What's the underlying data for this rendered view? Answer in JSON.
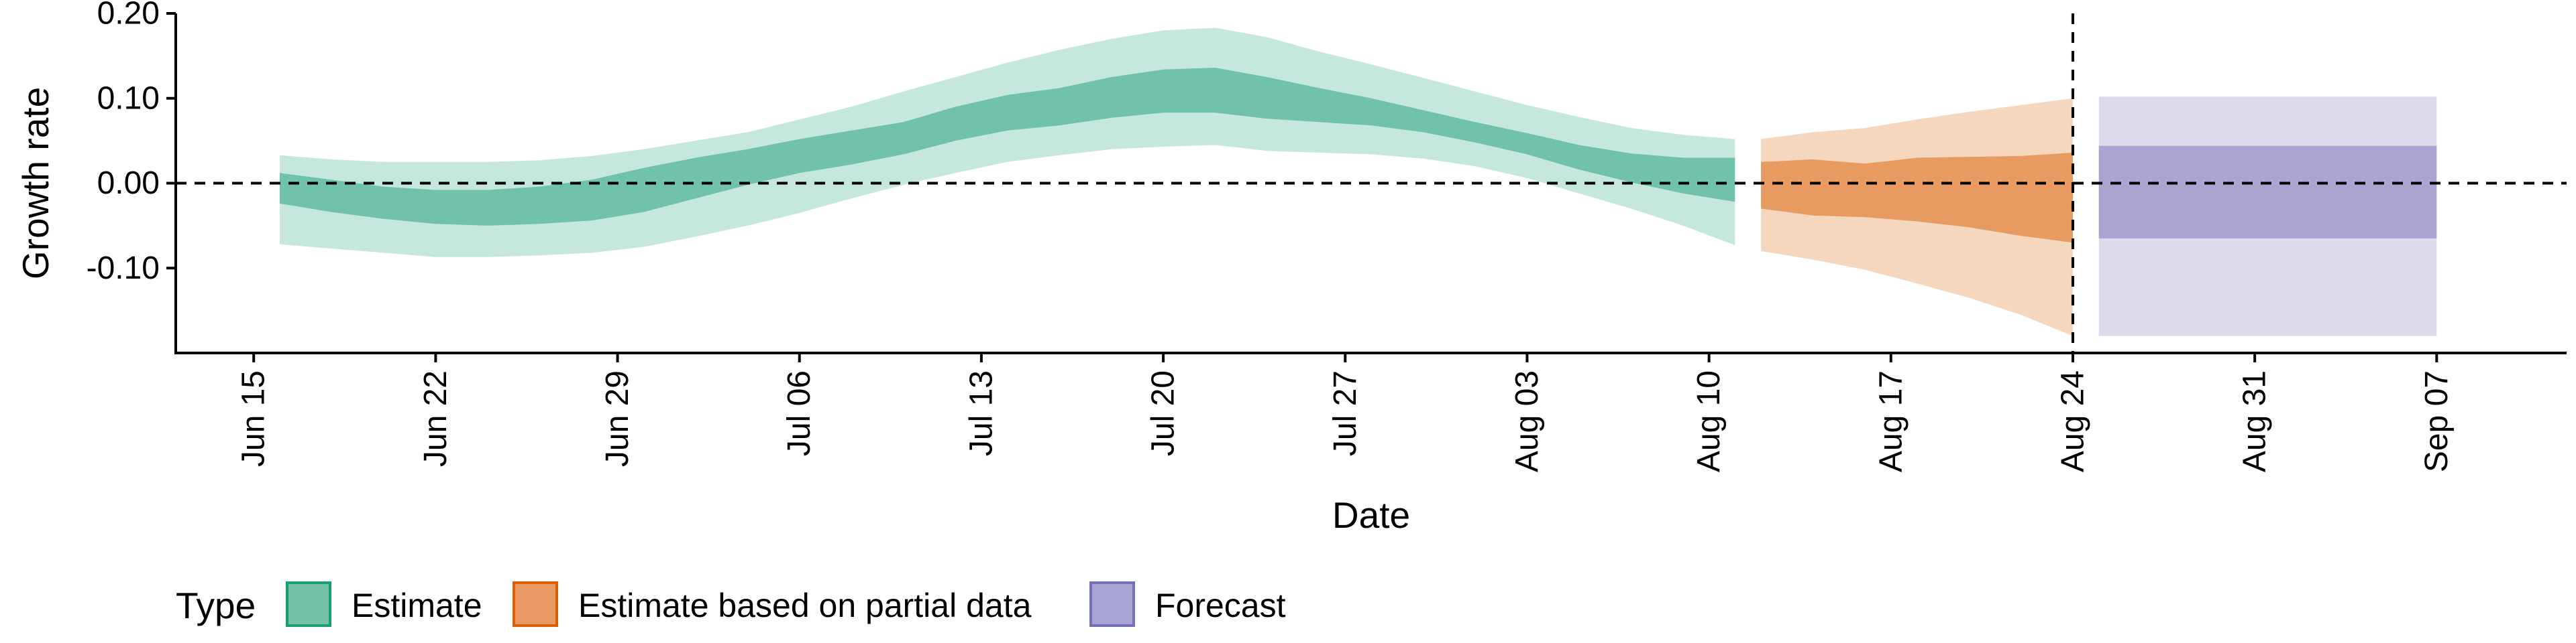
{
  "chart_data": {
    "type": "area",
    "xlabel": "Date",
    "ylabel": "Growth rate",
    "ylim": [
      -0.2,
      0.2
    ],
    "yticks": [
      -0.1,
      0.0,
      0.1,
      0.2
    ],
    "ytick_labels": [
      "-0.10",
      "0.00",
      "0.10",
      "0.20"
    ],
    "xlim": [
      "2021-06-12",
      "2021-09-12"
    ],
    "xticks": [
      "2021-06-15",
      "2021-06-22",
      "2021-06-29",
      "2021-07-06",
      "2021-07-13",
      "2021-07-20",
      "2021-07-27",
      "2021-08-03",
      "2021-08-10",
      "2021-08-17",
      "2021-08-24",
      "2021-08-31",
      "2021-09-07"
    ],
    "xtick_labels": [
      "Jun 15",
      "Jun 22",
      "Jun 29",
      "Jul 06",
      "Jul 13",
      "Jul 20",
      "Jul 27",
      "Aug 03",
      "Aug 10",
      "Aug 17",
      "Aug 24",
      "Aug 31",
      "Sep 07"
    ],
    "hline": 0.0,
    "vline": "2021-08-24",
    "grid": false,
    "legend": {
      "title": "Type",
      "position": "bottom",
      "entries": [
        {
          "label": "Estimate",
          "fill": "#73c2a5",
          "border": "#1b9e77"
        },
        {
          "label": "Estimate based on partial data",
          "fill": "#e89a62",
          "border": "#d95f02"
        },
        {
          "label": "Forecast",
          "fill": "#a7a3d2",
          "border": "#7570b3"
        }
      ]
    },
    "series": [
      {
        "name": "Estimate",
        "color": "#1b9e77",
        "x": [
          "2021-06-16",
          "2021-06-18",
          "2021-06-20",
          "2021-06-22",
          "2021-06-24",
          "2021-06-26",
          "2021-06-28",
          "2021-06-30",
          "2021-07-02",
          "2021-07-04",
          "2021-07-06",
          "2021-07-08",
          "2021-07-10",
          "2021-07-12",
          "2021-07-14",
          "2021-07-16",
          "2021-07-18",
          "2021-07-20",
          "2021-07-22",
          "2021-07-24",
          "2021-07-26",
          "2021-07-28",
          "2021-07-30",
          "2021-08-01",
          "2021-08-03",
          "2021-08-05",
          "2021-08-07",
          "2021-08-09",
          "2021-08-11"
        ],
        "outer_lower": [
          -0.072,
          -0.077,
          -0.082,
          -0.087,
          -0.087,
          -0.085,
          -0.082,
          -0.075,
          -0.063,
          -0.05,
          -0.035,
          -0.018,
          -0.002,
          0.012,
          0.025,
          0.033,
          0.04,
          0.043,
          0.045,
          0.038,
          0.036,
          0.034,
          0.029,
          0.02,
          0.006,
          -0.012,
          -0.03,
          -0.05,
          -0.073
        ],
        "inner_lower": [
          -0.024,
          -0.034,
          -0.042,
          -0.048,
          -0.05,
          -0.048,
          -0.044,
          -0.034,
          -0.018,
          -0.002,
          0.012,
          0.022,
          0.034,
          0.05,
          0.062,
          0.068,
          0.077,
          0.083,
          0.083,
          0.076,
          0.072,
          0.068,
          0.06,
          0.048,
          0.034,
          0.016,
          0.001,
          -0.012,
          -0.022
        ],
        "inner_upper": [
          0.012,
          0.004,
          -0.004,
          -0.008,
          -0.008,
          -0.004,
          0.004,
          0.018,
          0.03,
          0.04,
          0.052,
          0.062,
          0.072,
          0.09,
          0.104,
          0.112,
          0.125,
          0.134,
          0.136,
          0.125,
          0.112,
          0.1,
          0.086,
          0.072,
          0.059,
          0.045,
          0.035,
          0.03,
          0.03
        ],
        "outer_upper": [
          0.033,
          0.028,
          0.025,
          0.025,
          0.025,
          0.027,
          0.032,
          0.04,
          0.05,
          0.06,
          0.075,
          0.09,
          0.108,
          0.125,
          0.142,
          0.157,
          0.17,
          0.18,
          0.183,
          0.172,
          0.155,
          0.14,
          0.124,
          0.108,
          0.092,
          0.078,
          0.065,
          0.057,
          0.052
        ]
      },
      {
        "name": "Estimate based on partial data",
        "color": "#d95f02",
        "x": [
          "2021-08-12",
          "2021-08-14",
          "2021-08-16",
          "2021-08-18",
          "2021-08-20",
          "2021-08-22",
          "2021-08-24"
        ],
        "outer_lower": [
          -0.08,
          -0.09,
          -0.102,
          -0.118,
          -0.135,
          -0.155,
          -0.18
        ],
        "inner_lower": [
          -0.03,
          -0.038,
          -0.04,
          -0.045,
          -0.052,
          -0.062,
          -0.07
        ],
        "inner_upper": [
          0.025,
          0.028,
          0.023,
          0.03,
          0.031,
          0.032,
          0.036
        ],
        "outer_upper": [
          0.052,
          0.06,
          0.065,
          0.075,
          0.084,
          0.092,
          0.1
        ]
      },
      {
        "name": "Forecast",
        "color": "#7570b3",
        "x": [
          "2021-08-25",
          "2021-09-07"
        ],
        "outer_lower": [
          -0.18,
          -0.18
        ],
        "inner_lower": [
          -0.065,
          -0.065
        ],
        "inner_upper": [
          0.044,
          0.044
        ],
        "outer_upper": [
          0.102,
          0.102
        ]
      }
    ]
  }
}
